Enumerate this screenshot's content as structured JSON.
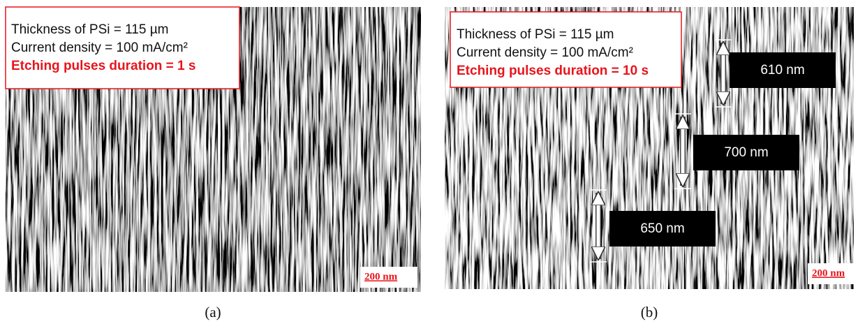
{
  "panels": [
    {
      "lines": [
        "Thickness of PSi = 115 µm",
        "Current density = 100 mA/cm²"
      ],
      "highlight": "Etching pulses duration = 1 s",
      "scale_bar": "200 nm",
      "caption": "(a)"
    },
    {
      "lines": [
        "Thickness of PSi = 115 µm",
        "Current density = 100 mA/cm²"
      ],
      "highlight": "Etching pulses duration = 10 s",
      "scale_bar": "200 nm",
      "caption": "(b)",
      "measurements": [
        "610 nm",
        "700 nm",
        "650 nm"
      ]
    }
  ]
}
